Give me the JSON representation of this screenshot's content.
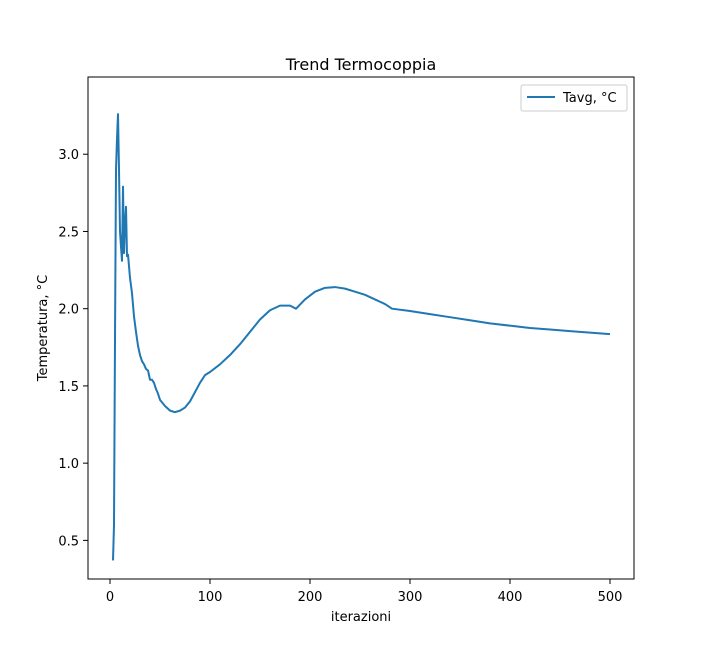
{
  "chart_data": {
    "type": "line",
    "title": "Trend Termocoppia",
    "xlabel": "iterazioni",
    "ylabel": "Temperatura, °C",
    "xlim": [
      -22,
      524
    ],
    "ylim": [
      0.25,
      3.5
    ],
    "xticks": [
      0,
      100,
      200,
      300,
      400,
      500
    ],
    "xtick_labels": [
      "0",
      "100",
      "200",
      "300",
      "400",
      "500"
    ],
    "yticks": [
      0.5,
      1.0,
      1.5,
      2.0,
      2.5,
      3.0
    ],
    "ytick_labels": [
      "0.5",
      "1.0",
      "1.5",
      "2.0",
      "2.5",
      "3.0"
    ],
    "grid": false,
    "legend_position": "upper right",
    "series": [
      {
        "name": "Tavg, °C",
        "color": "#1f77b4",
        "points": [
          [
            3,
            0.37
          ],
          [
            4,
            0.6
          ],
          [
            5,
            1.8
          ],
          [
            6,
            2.9
          ],
          [
            7,
            3.1
          ],
          [
            8,
            3.26
          ],
          [
            9,
            2.9
          ],
          [
            10,
            2.5
          ],
          [
            11,
            2.4
          ],
          [
            12,
            2.31
          ],
          [
            13,
            2.79
          ],
          [
            14,
            2.36
          ],
          [
            15,
            2.55
          ],
          [
            16,
            2.66
          ],
          [
            17,
            2.34
          ],
          [
            18,
            2.35
          ],
          [
            20,
            2.2
          ],
          [
            22,
            2.1
          ],
          [
            24,
            1.95
          ],
          [
            26,
            1.85
          ],
          [
            28,
            1.76
          ],
          [
            30,
            1.7
          ],
          [
            32,
            1.66
          ],
          [
            34,
            1.64
          ],
          [
            36,
            1.61
          ],
          [
            38,
            1.6
          ],
          [
            40,
            1.54
          ],
          [
            42,
            1.54
          ],
          [
            44,
            1.52
          ],
          [
            46,
            1.48
          ],
          [
            48,
            1.45
          ],
          [
            50,
            1.41
          ],
          [
            55,
            1.37
          ],
          [
            60,
            1.34
          ],
          [
            65,
            1.33
          ],
          [
            70,
            1.34
          ],
          [
            75,
            1.36
          ],
          [
            80,
            1.4
          ],
          [
            85,
            1.46
          ],
          [
            90,
            1.52
          ],
          [
            95,
            1.57
          ],
          [
            100,
            1.59
          ],
          [
            110,
            1.64
          ],
          [
            120,
            1.7
          ],
          [
            130,
            1.77
          ],
          [
            140,
            1.85
          ],
          [
            150,
            1.93
          ],
          [
            160,
            1.99
          ],
          [
            170,
            2.02
          ],
          [
            180,
            2.02
          ],
          [
            186,
            2.0
          ],
          [
            195,
            2.06
          ],
          [
            205,
            2.11
          ],
          [
            215,
            2.135
          ],
          [
            225,
            2.14
          ],
          [
            235,
            2.13
          ],
          [
            245,
            2.11
          ],
          [
            255,
            2.09
          ],
          [
            265,
            2.06
          ],
          [
            275,
            2.03
          ],
          [
            282,
            2.0
          ],
          [
            300,
            1.985
          ],
          [
            320,
            1.965
          ],
          [
            340,
            1.945
          ],
          [
            360,
            1.925
          ],
          [
            380,
            1.905
          ],
          [
            400,
            1.89
          ],
          [
            420,
            1.875
          ],
          [
            440,
            1.865
          ],
          [
            460,
            1.855
          ],
          [
            480,
            1.845
          ],
          [
            500,
            1.835
          ]
        ]
      }
    ]
  }
}
